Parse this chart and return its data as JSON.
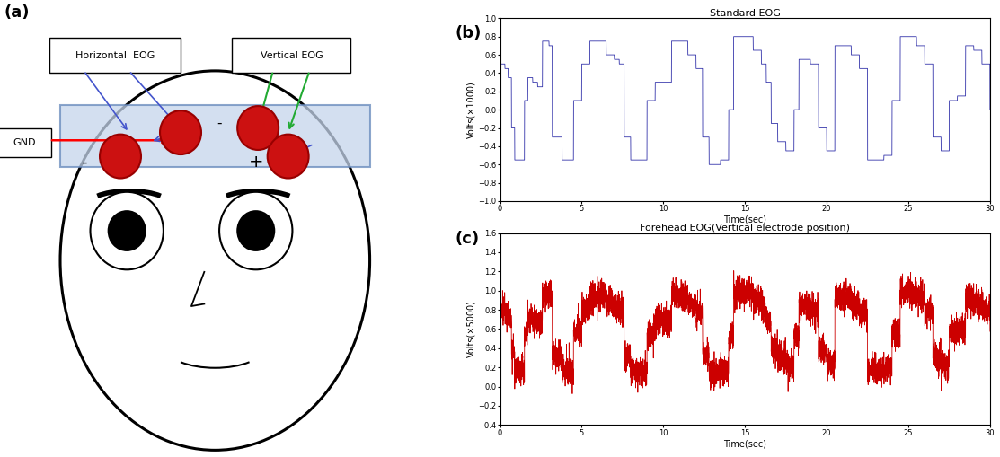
{
  "title_b": "Standard EOG",
  "title_c": "Forehead EOG(Vertical electrode position)",
  "xlabel": "Time(sec)",
  "ylabel_b": "Volts(×1000)",
  "ylabel_c": "Volts(×5000)",
  "xlim": [
    0,
    30
  ],
  "ylim_b": [
    -1.0,
    1.0
  ],
  "ylim_c": [
    -0.4,
    1.6
  ],
  "xticks": [
    0,
    5,
    10,
    15,
    20,
    25,
    30
  ],
  "yticks_b": [
    -1.0,
    -0.8,
    -0.6,
    -0.4,
    -0.2,
    0.0,
    0.2,
    0.4,
    0.6,
    0.8,
    1.0
  ],
  "yticks_c": [
    -0.4,
    -0.2,
    0.0,
    0.2,
    0.4,
    0.6,
    0.8,
    1.0,
    1.2,
    1.4,
    1.6
  ],
  "color_b": "#3333aa",
  "color_c": "#cc0000",
  "label_a": "(a)",
  "label_b": "(b)",
  "label_c": "(c)",
  "bg_color": "#ffffff",
  "panel_label_fontsize": 13,
  "title_fontsize": 8,
  "axis_label_fontsize": 7,
  "tick_fontsize": 6
}
